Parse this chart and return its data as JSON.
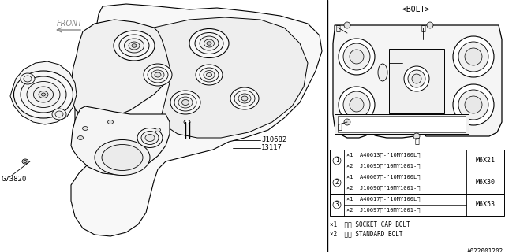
{
  "background_color": "#ffffff",
  "fig_width": 6.4,
  "fig_height": 3.2,
  "dpi": 100,
  "diagram_label": "A022001202",
  "bolt_label": "<BOLT>",
  "line_color": "#000000",
  "text_color": "#000000",
  "gray_text": "#888888",
  "table_rows": [
    {
      "num": "1",
      "col1a": "×1  A40613（-’10MY100L）",
      "col1b": "×2  J10695（’10MY1001-）",
      "col2": "M6X21"
    },
    {
      "num": "2",
      "col1a": "×1  A40607（-’10MY100L）",
      "col1b": "×2  J10696（’10MY1001-）",
      "col2": "M6X30"
    },
    {
      "num": "3",
      "col1a": "×1  A40617（-’10MY100L）",
      "col1b": "×2  J10697（’10MY1001-）",
      "col2": "M6X53"
    }
  ],
  "footnote1": "×1  ⓈⓂ SOCKET CAP BOLT",
  "footnote2": "×2  ⓈⓂ STANDARD BOLT"
}
